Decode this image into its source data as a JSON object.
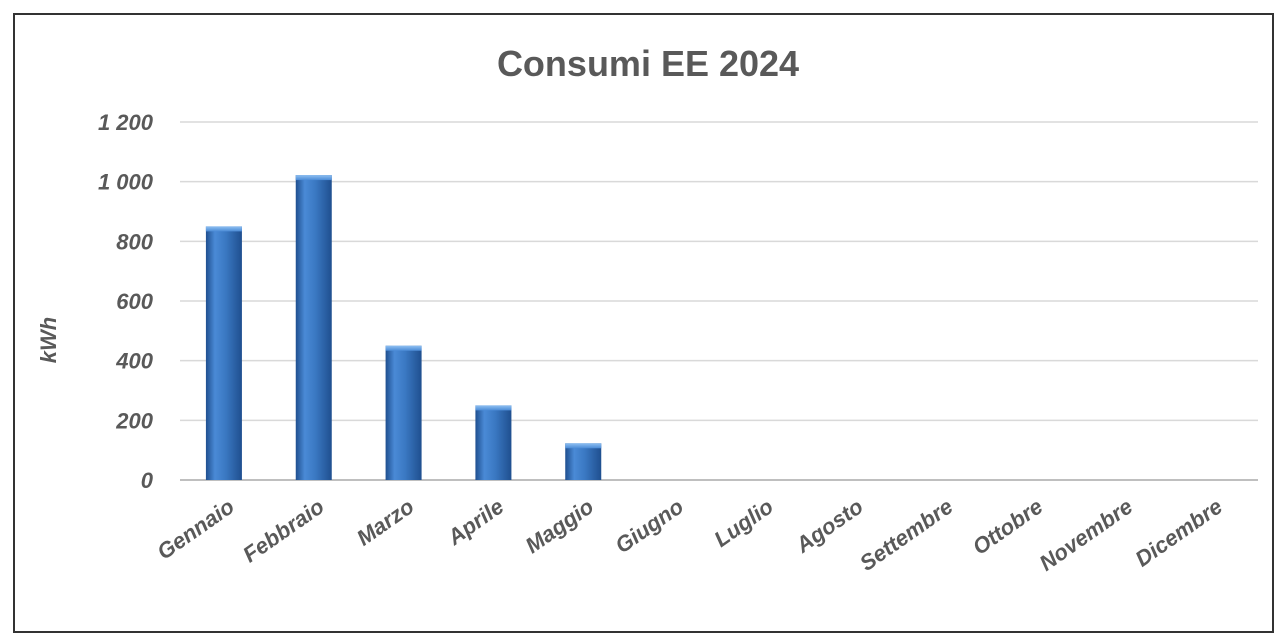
{
  "chart_data": {
    "type": "bar",
    "title": "Consumi EE 2024",
    "xlabel": "",
    "ylabel": "kWh",
    "categories": [
      "Gennaio",
      "Febbraio",
      "Marzo",
      "Aprile",
      "Maggio",
      "Giugno",
      "Luglio",
      "Agosto",
      "Settembre",
      "Ottobre",
      "Novembre",
      "Dicembre"
    ],
    "values": [
      850,
      1022,
      450,
      250,
      123,
      0,
      0,
      0,
      0,
      0,
      0,
      0
    ],
    "ylim": [
      0,
      1200
    ],
    "yticks": [
      0,
      200,
      400,
      600,
      800,
      1000,
      1200
    ],
    "ytick_labels": [
      "0",
      "200",
      "400",
      "600",
      "800",
      "1 000",
      "1 200"
    ],
    "grid": true,
    "legend": "none",
    "colors": {
      "bar": "#3a78c2",
      "bar_light": "#6fa6e6",
      "bar_dark": "#1f4f8f",
      "grid": "#d9d9d9",
      "text": "#595959"
    }
  }
}
